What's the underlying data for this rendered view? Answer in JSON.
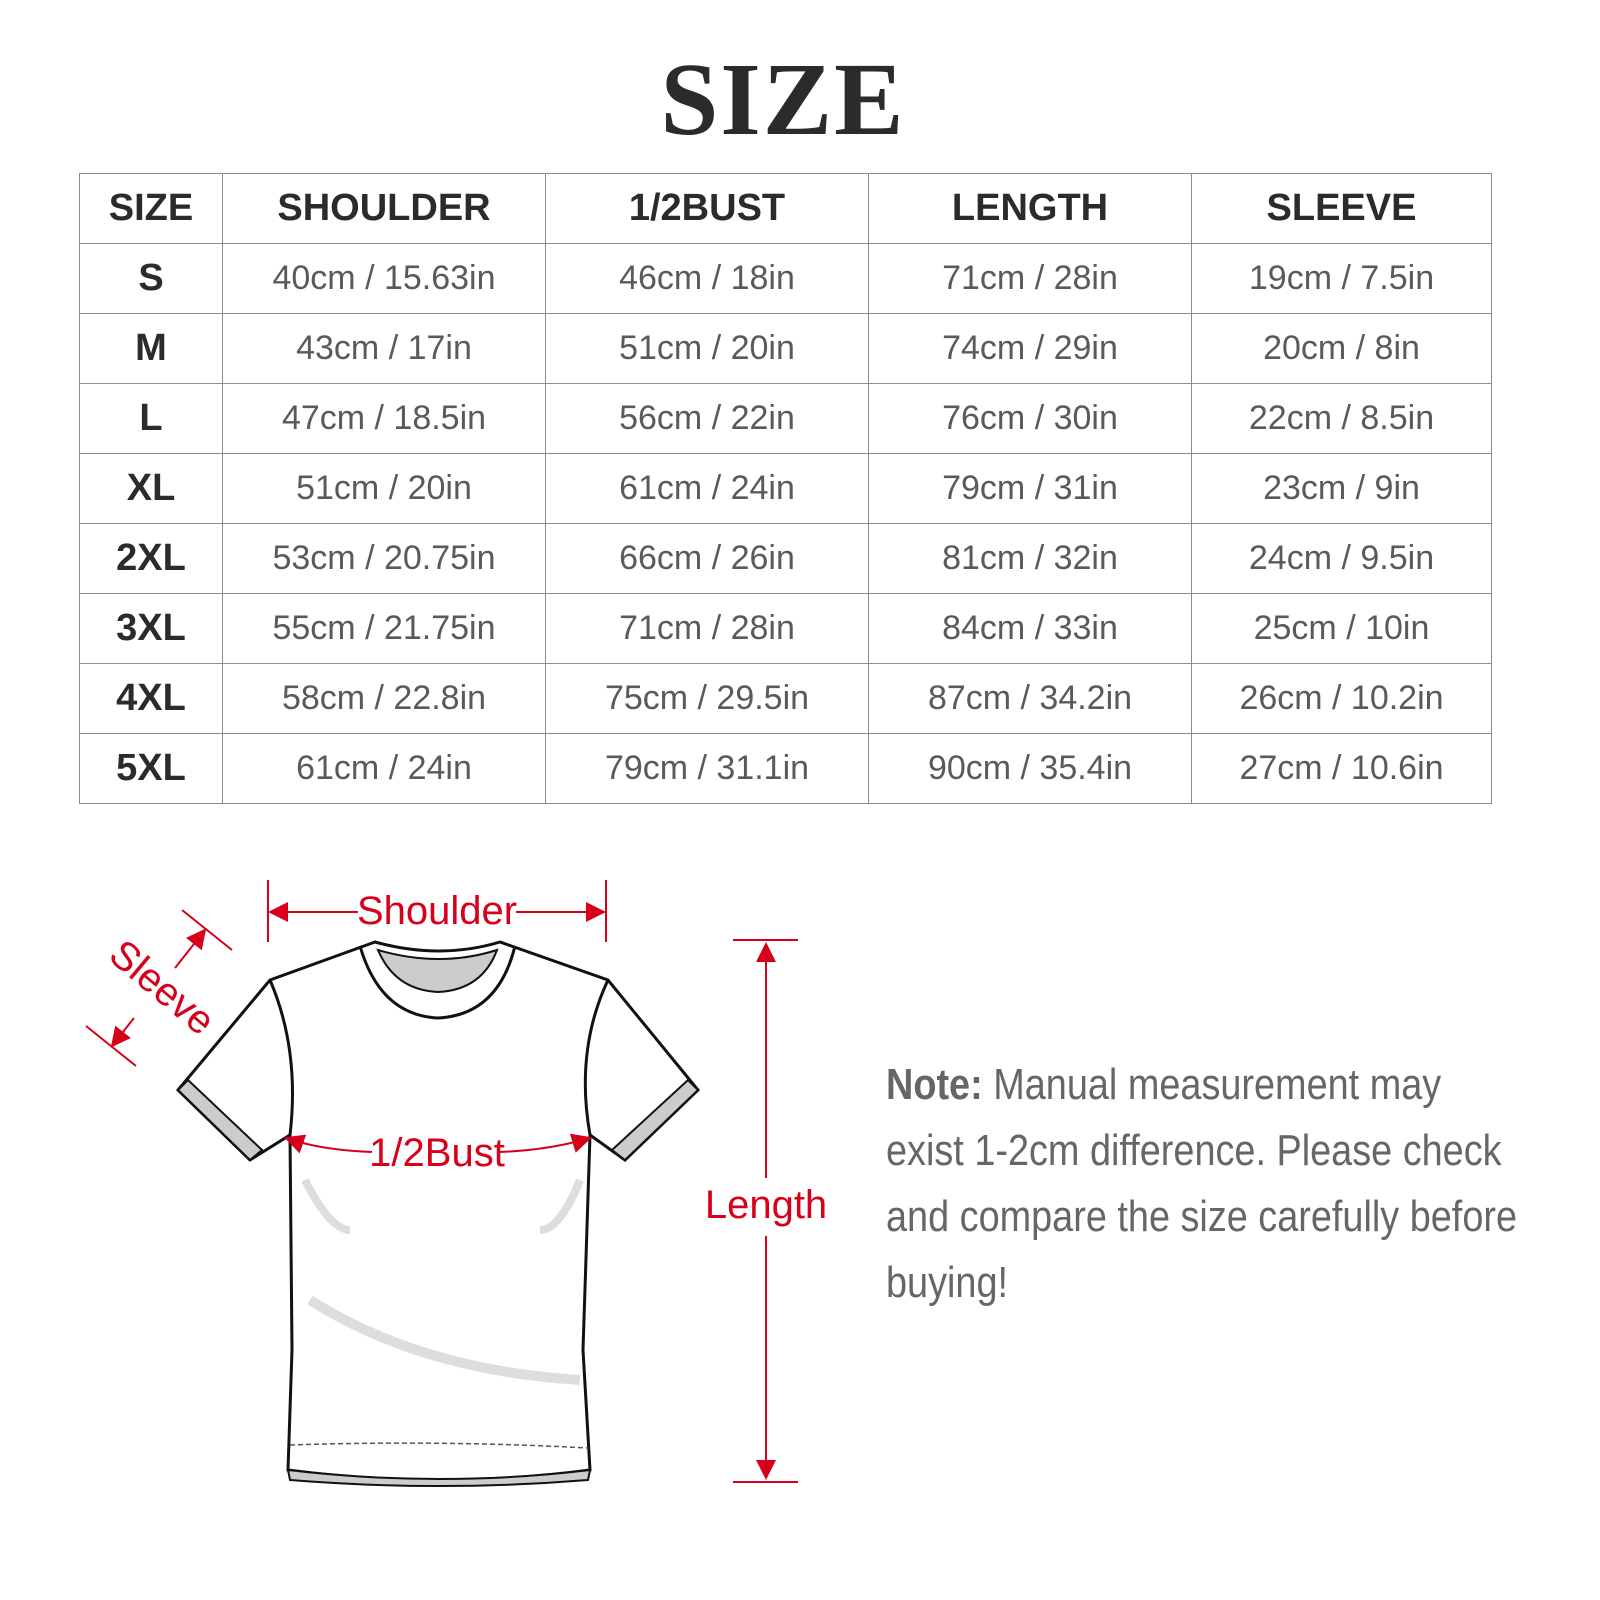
{
  "title": "SIZE",
  "table": {
    "headers": [
      "SIZE",
      "SHOULDER",
      "1/2BUST",
      "LENGTH",
      "SLEEVE"
    ],
    "rows": [
      [
        "S",
        "40cm / 15.63in",
        "46cm / 18in",
        "71cm / 28in",
        "19cm / 7.5in"
      ],
      [
        "M",
        "43cm / 17in",
        "51cm / 20in",
        "74cm / 29in",
        "20cm / 8in"
      ],
      [
        "L",
        "47cm / 18.5in",
        "56cm / 22in",
        "76cm / 30in",
        "22cm / 8.5in"
      ],
      [
        "XL",
        "51cm / 20in",
        "61cm / 24in",
        "79cm / 31in",
        "23cm / 9in"
      ],
      [
        "2XL",
        "53cm / 20.75in",
        "66cm / 26in",
        "81cm / 32in",
        "24cm / 9.5in"
      ],
      [
        "3XL",
        "55cm / 21.75in",
        "71cm / 28in",
        "84cm / 33in",
        "25cm / 10in"
      ],
      [
        "4XL",
        "58cm / 22.8in",
        "75cm / 29.5in",
        "87cm / 34.2in",
        "26cm / 10.2in"
      ],
      [
        "5XL",
        "61cm / 24in",
        "79cm / 31.1in",
        "90cm / 35.4in",
        "27cm / 10.6in"
      ]
    ]
  },
  "diagram": {
    "shoulder_label": "Shoulder",
    "sleeve_label": "Sleeve",
    "bust_label": "1/2Bust",
    "length_label": "Length",
    "accent_color": "#d7001a",
    "icon": "t-shirt-icon"
  },
  "note": {
    "label": "Note:",
    "text": " Manual measurement may exist 1-2cm difference. Please check and compare the size carefully before buying!"
  }
}
